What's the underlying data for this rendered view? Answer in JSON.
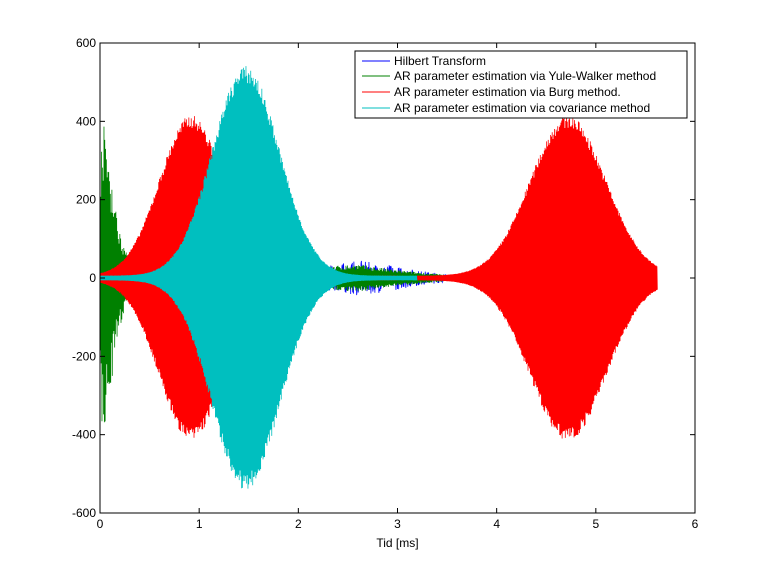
{
  "chart_data": {
    "type": "line",
    "title": "",
    "xlabel": "Tid [ms]",
    "ylabel": "",
    "xlim": [
      0,
      6
    ],
    "ylim": [
      -600,
      600
    ],
    "xticks": [
      0,
      1,
      2,
      3,
      4,
      5,
      6
    ],
    "yticks": [
      -600,
      -400,
      -200,
      0,
      200,
      400,
      600
    ],
    "grid": false,
    "legend_position": "top-right",
    "series": [
      {
        "name": "Hilbert Transform",
        "color": "#0000ff",
        "kind": "noise",
        "x_range": [
          0,
          3.5
        ],
        "envelope_points": [
          [
            0,
            12
          ],
          [
            0.8,
            12
          ],
          [
            1.6,
            18
          ],
          [
            2.2,
            28
          ],
          [
            2.6,
            45
          ],
          [
            2.9,
            35
          ],
          [
            3.2,
            20
          ],
          [
            3.5,
            10
          ]
        ]
      },
      {
        "name": "AR parameter estimation via Yule-Walker method",
        "color": "#008000",
        "kind": "oscillation",
        "x_range": [
          0,
          3.5
        ],
        "envelope_points": [
          [
            0,
            260
          ],
          [
            0.02,
            420
          ],
          [
            0.09,
            320
          ],
          [
            0.17,
            160
          ],
          [
            0.3,
            30
          ],
          [
            1.0,
            15
          ],
          [
            2.0,
            25
          ],
          [
            2.6,
            35
          ],
          [
            3.0,
            20
          ],
          [
            3.5,
            8
          ]
        ]
      },
      {
        "name": "AR parameter estimation via Burg method.",
        "color": "#ff0000",
        "kind": "burst",
        "bursts": [
          {
            "center": 0.92,
            "width": 0.32,
            "amplitude": 410,
            "x_range": [
              0,
              3.0
            ]
          },
          {
            "center": 4.72,
            "width": 0.38,
            "amplitude": 410,
            "x_range": [
              3.2,
              5.62
            ]
          }
        ]
      },
      {
        "name": "AR parameter estimation via covariance method",
        "color": "#00bfbf",
        "kind": "burst",
        "bursts": [
          {
            "center": 1.47,
            "width": 0.34,
            "amplitude": 535,
            "x_range": [
              0,
              3.2
            ]
          }
        ]
      }
    ]
  }
}
